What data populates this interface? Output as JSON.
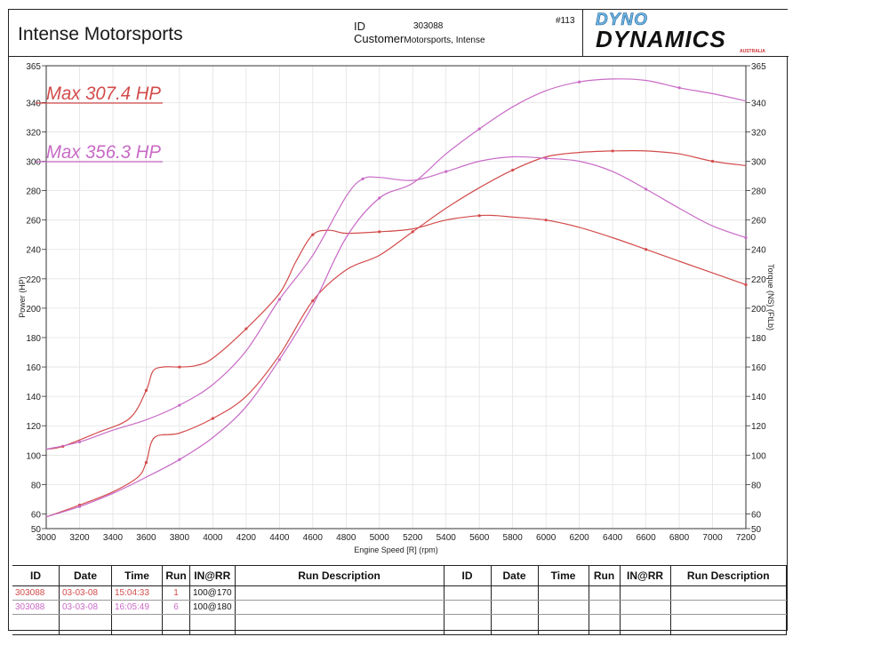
{
  "header": {
    "company": "Intense Motorsports",
    "id_label": "ID",
    "id_value": "303088",
    "customer_label": "Customer",
    "customer_value": "Motorsports, Intense",
    "job_no": "#113",
    "logo_top": "DYNO",
    "logo_main": "DYNAMICS",
    "logo_sub": "AUSTRALIA"
  },
  "chart_data": {
    "type": "line",
    "xlabel": "Engine Speed [R] (rpm)",
    "ylabel": "Power (HP)",
    "y2label": "Torque (NS) (FtLb)",
    "xlim": [
      3000,
      7200
    ],
    "ylim": [
      50,
      365
    ],
    "y2lim": [
      50,
      365
    ],
    "x_ticks": [
      3000,
      3200,
      3400,
      3600,
      3800,
      4000,
      4200,
      4400,
      4600,
      4800,
      5000,
      5200,
      5400,
      5600,
      5800,
      6000,
      6200,
      6400,
      6600,
      6800,
      7000,
      7200
    ],
    "y_ticks": [
      50,
      60,
      80,
      100,
      120,
      140,
      160,
      180,
      200,
      220,
      240,
      260,
      280,
      300,
      320,
      340,
      365
    ],
    "grid": true,
    "annotations": [
      {
        "text": "Max 307.4 HP",
        "color": "#d34b4b"
      },
      {
        "text": "Max 356.3 HP",
        "color": "#c86ac6"
      }
    ],
    "series": [
      {
        "kind": "power",
        "run": 1,
        "color": "#d34b4b",
        "x": [
          3000,
          3200,
          3400,
          3550,
          3600,
          3650,
          3800,
          4000,
          4200,
          4400,
          4600,
          4800,
          5000,
          5200,
          5400,
          5600,
          5800,
          6000,
          6200,
          6400,
          6600,
          6800,
          7000,
          7200
        ],
        "values": [
          58,
          66,
          75,
          85,
          95,
          112,
          115,
          125,
          140,
          168,
          205,
          226,
          236,
          252,
          268,
          282,
          294,
          303,
          306,
          307,
          307,
          305,
          300,
          297
        ]
      },
      {
        "kind": "torque",
        "run": 1,
        "color": "#d34b4b",
        "x": [
          3000,
          3100,
          3300,
          3500,
          3600,
          3640,
          3700,
          3800,
          3900,
          4000,
          4200,
          4400,
          4500,
          4600,
          4700,
          4800,
          5000,
          5200,
          5400,
          5600,
          5700,
          5800,
          6000,
          6200,
          6400,
          6600,
          6800,
          7000,
          7200
        ],
        "values": [
          104,
          106,
          115,
          125,
          144,
          157,
          160,
          160,
          161,
          166,
          186,
          210,
          232,
          250,
          253,
          251,
          252,
          254,
          260,
          263,
          263,
          262,
          260,
          255,
          248,
          240,
          232,
          224,
          216
        ]
      },
      {
        "kind": "power",
        "run": 6,
        "color": "#c86ac6",
        "x": [
          3000,
          3200,
          3400,
          3600,
          3800,
          4000,
          4200,
          4400,
          4600,
          4800,
          5000,
          5200,
          5400,
          5600,
          5800,
          6000,
          6200,
          6400,
          6600,
          6800,
          7000,
          7200
        ],
        "values": [
          58,
          65,
          74,
          85,
          97,
          112,
          133,
          165,
          202,
          248,
          275,
          285,
          305,
          322,
          337,
          348,
          354,
          356,
          355,
          350,
          346,
          341
        ]
      },
      {
        "kind": "torque",
        "run": 6,
        "color": "#c86ac6",
        "x": [
          3000,
          3200,
          3400,
          3600,
          3800,
          4000,
          4200,
          4400,
          4600,
          4800,
          4900,
          5000,
          5200,
          5400,
          5600,
          5800,
          6000,
          6200,
          6400,
          6600,
          6800,
          7000,
          7200
        ],
        "values": [
          104,
          109,
          117,
          124,
          134,
          148,
          171,
          206,
          236,
          276,
          288,
          289,
          287,
          293,
          300,
          303,
          302,
          300,
          293,
          281,
          268,
          256,
          248
        ]
      }
    ]
  },
  "runs_table": {
    "headers": [
      "ID",
      "Date",
      "Time",
      "Run",
      "IN@RR",
      "Run Description",
      "ID",
      "Date",
      "Time",
      "Run",
      "IN@RR",
      "Run Description"
    ],
    "rows": [
      {
        "id": "303088",
        "date": "03-03-08",
        "time": "15:04:33",
        "run": "1",
        "inrr": "100@170"
      },
      {
        "id": "303088",
        "date": "03-03-08",
        "time": "16:05:49",
        "run": "6",
        "inrr": "100@180"
      }
    ]
  }
}
